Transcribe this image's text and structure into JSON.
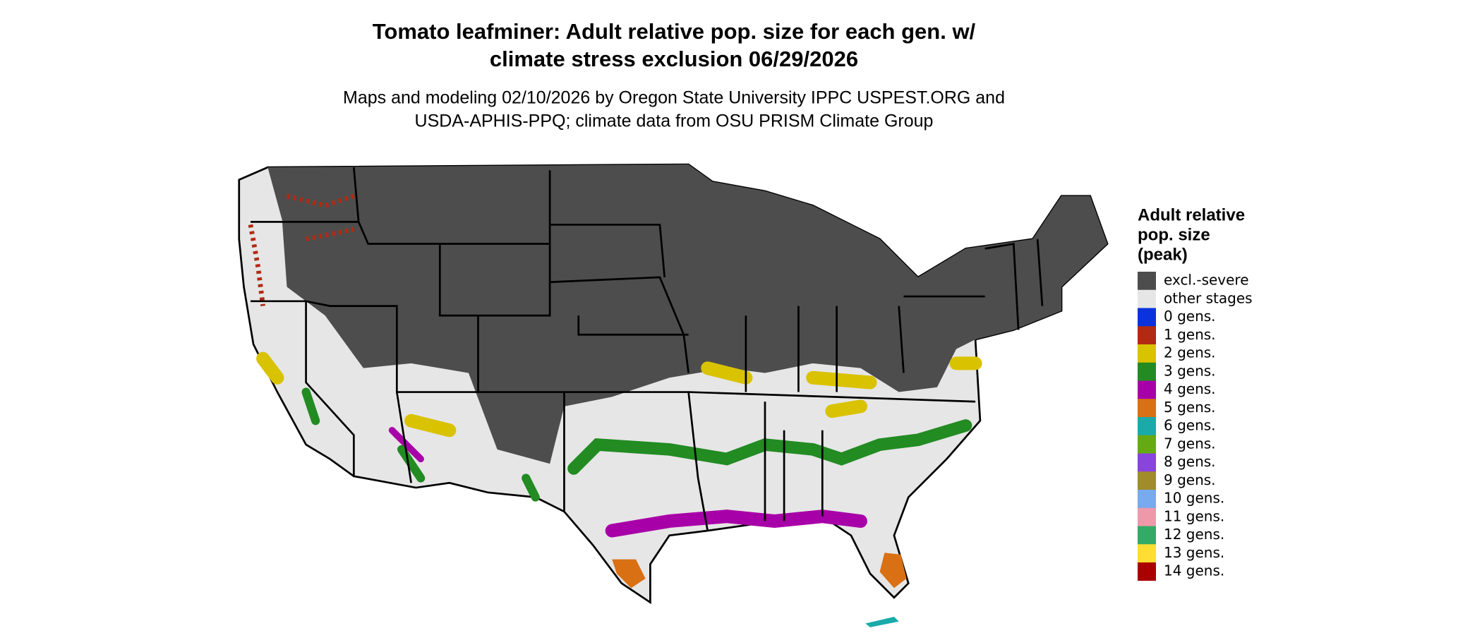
{
  "title": [
    "Tomato leafminer: Adult relative pop. size for each gen. w/",
    "climate stress exclusion 06/29/2026"
  ],
  "subtitle": [
    "Maps and modeling 02/10/2026 by Oregon State University IPPC USPEST.ORG and",
    "USDA-APHIS-PPQ; climate data from OSU PRISM Climate Group"
  ],
  "legend": {
    "title": [
      "Adult relative",
      "pop. size",
      "(peak)"
    ],
    "items": [
      {
        "label": "excl.-severe",
        "color": "#4d4d4d"
      },
      {
        "label": "other stages",
        "color": "#e6e6e6"
      },
      {
        "label": "0 gens.",
        "color": "#0a33dd"
      },
      {
        "label": "1 gens.",
        "color": "#b22a12"
      },
      {
        "label": "2 gens.",
        "color": "#d9c200"
      },
      {
        "label": "3 gens.",
        "color": "#228b22"
      },
      {
        "label": "4 gens.",
        "color": "#a800a8"
      },
      {
        "label": "5 gens.",
        "color": "#d97013"
      },
      {
        "label": "6 gens.",
        "color": "#1aaaaa"
      },
      {
        "label": "7 gens.",
        "color": "#66aa11"
      },
      {
        "label": "8 gens.",
        "color": "#8844dd"
      },
      {
        "label": "9 gens.",
        "color": "#a08c2a"
      },
      {
        "label": "10 gens.",
        "color": "#77aaee"
      },
      {
        "label": "11 gens.",
        "color": "#ee99aa"
      },
      {
        "label": "12 gens.",
        "color": "#33aa66"
      },
      {
        "label": "13 gens.",
        "color": "#ffdd33"
      },
      {
        "label": "14 gens.",
        "color": "#aa0000"
      }
    ]
  }
}
